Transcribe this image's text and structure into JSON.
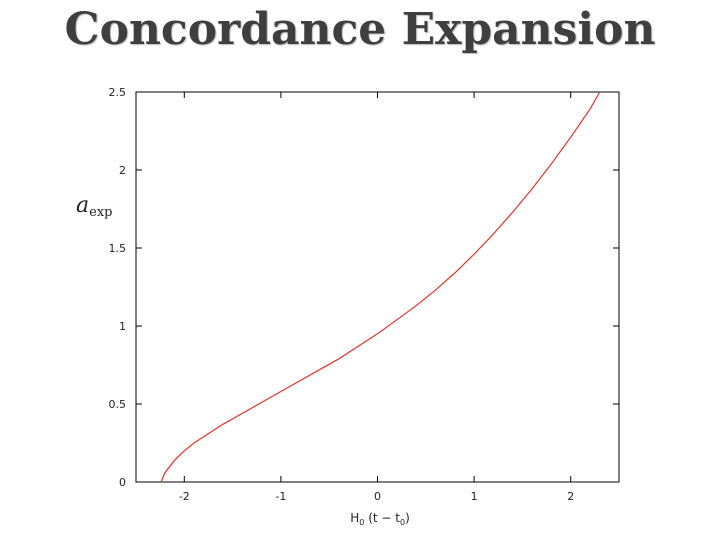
{
  "slide": {
    "title": "Concordance Expansion"
  },
  "chart_data": {
    "type": "line",
    "title": "",
    "xlabel": {
      "main": "H",
      "sub0": "0",
      "mid": " (t − t",
      "sub1": "0",
      "end": ")"
    },
    "ylabel": {
      "main": "a",
      "sub": "exp"
    },
    "xlim": [
      -2.5,
      2.5
    ],
    "ylim": [
      0,
      2.5
    ],
    "xticks": [
      -2,
      -1,
      0,
      1,
      2
    ],
    "xtick_labels": [
      "-2",
      "-1",
      "0",
      "1",
      "2"
    ],
    "yticks": [
      0,
      0.5,
      1,
      1.5,
      2,
      2.5
    ],
    "ytick_labels": [
      "0",
      "0.5",
      "1",
      "1.5",
      "2",
      "2.5"
    ],
    "grid": false,
    "series": [
      {
        "color": "#e0352b",
        "x": [
          -2.24,
          -2.2,
          -2.1,
          -2.0,
          -1.9,
          -1.8,
          -1.6,
          -1.4,
          -1.2,
          -1.0,
          -0.8,
          -0.6,
          -0.4,
          -0.2,
          0.0,
          0.2,
          0.4,
          0.6,
          0.8,
          1.0,
          1.2,
          1.4,
          1.6,
          1.8,
          2.0,
          2.2,
          2.3
        ],
        "y": [
          0.0,
          0.06,
          0.14,
          0.2,
          0.25,
          0.29,
          0.37,
          0.44,
          0.51,
          0.58,
          0.65,
          0.72,
          0.79,
          0.87,
          0.95,
          1.04,
          1.13,
          1.23,
          1.34,
          1.46,
          1.59,
          1.73,
          1.88,
          2.04,
          2.21,
          2.39,
          2.5
        ]
      }
    ]
  }
}
